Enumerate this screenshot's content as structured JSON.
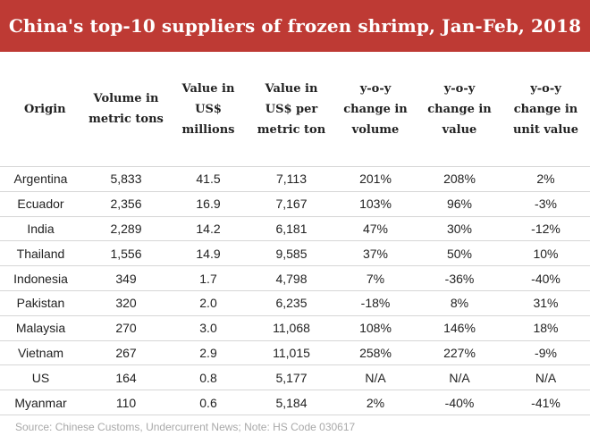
{
  "title": "China's top-10 suppliers of frozen shrimp, Jan-Feb, 2018",
  "columns": [
    "Origin",
    "Volume in metric tons",
    "Value in US$ millions",
    "Value in US$ per metric ton",
    "y-o-y change in volume",
    "y-o-y change in value",
    "y-o-y change in unit value"
  ],
  "rows": [
    [
      "Argentina",
      "5,833",
      "41.5",
      "7,113",
      "201%",
      "208%",
      "2%"
    ],
    [
      "Ecuador",
      "2,356",
      "16.9",
      "7,167",
      "103%",
      "96%",
      "-3%"
    ],
    [
      "India",
      "2,289",
      "14.2",
      "6,181",
      "47%",
      "30%",
      "-12%"
    ],
    [
      "Thailand",
      "1,556",
      "14.9",
      "9,585",
      "37%",
      "50%",
      "10%"
    ],
    [
      "Indonesia",
      "349",
      "1.7",
      "4,798",
      "7%",
      "-36%",
      "-40%"
    ],
    [
      "Pakistan",
      "320",
      "2.0",
      "6,235",
      "-18%",
      "8%",
      "31%"
    ],
    [
      "Malaysia",
      "270",
      "3.0",
      "11,068",
      "108%",
      "146%",
      "18%"
    ],
    [
      "Vietnam",
      "267",
      "2.9",
      "11,015",
      "258%",
      "227%",
      "-9%"
    ],
    [
      "US",
      "164",
      "0.8",
      "5,177",
      "N/A",
      "N/A",
      "N/A"
    ],
    [
      "Myanmar",
      "110",
      "0.6",
      "5,184",
      "2%",
      "-40%",
      "-41%"
    ]
  ],
  "source": "Source: Chinese Customs, Undercurrent News; Note: HS Code 030617",
  "colors": {
    "title_bar": "#be3a34",
    "title_text": "#ffffff",
    "body_text": "#222222",
    "rule": "#d6d6d6",
    "source_text": "#a9a9a9"
  }
}
